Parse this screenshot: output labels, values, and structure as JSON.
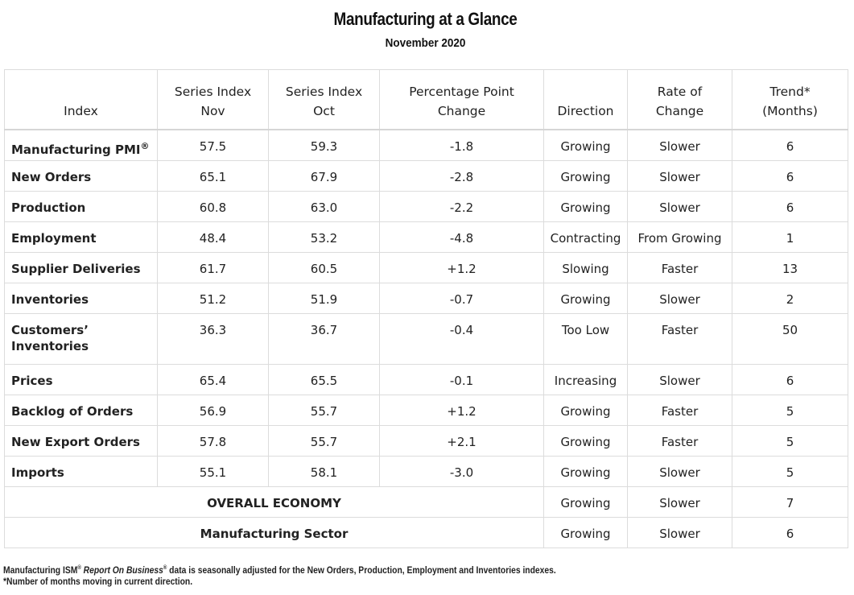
{
  "chart_data": {
    "type": "table",
    "title": "Manufacturing at a Glance",
    "subtitle": "November 2020",
    "columns": [
      {
        "line1": "",
        "line2": "Index"
      },
      {
        "line1": "Series Index",
        "line2": "Nov"
      },
      {
        "line1": "Series Index",
        "line2": "Oct"
      },
      {
        "line1": "Percentage Point",
        "line2": "Change"
      },
      {
        "line1": "",
        "line2": "Direction"
      },
      {
        "line1": "Rate of",
        "line2": "Change"
      },
      {
        "line1": "Trend*",
        "line2": "(Months)"
      }
    ],
    "rows": [
      {
        "index": "Manufacturing PMI",
        "mark": "®",
        "nov": "57.5",
        "oct": "59.3",
        "change": "-1.8",
        "direction": "Growing",
        "rate": "Slower",
        "trend": "6"
      },
      {
        "index": "New Orders",
        "mark": "",
        "nov": "65.1",
        "oct": "67.9",
        "change": "-2.8",
        "direction": "Growing",
        "rate": "Slower",
        "trend": "6"
      },
      {
        "index": "Production",
        "mark": "",
        "nov": "60.8",
        "oct": "63.0",
        "change": "-2.2",
        "direction": "Growing",
        "rate": "Slower",
        "trend": "6"
      },
      {
        "index": "Employment",
        "mark": "",
        "nov": "48.4",
        "oct": "53.2",
        "change": "-4.8",
        "direction": "Contracting",
        "rate": "From Growing",
        "trend": "1"
      },
      {
        "index": "Supplier Deliveries",
        "mark": "",
        "nov": "61.7",
        "oct": "60.5",
        "change": "+1.2",
        "direction": "Slowing",
        "rate": "Faster",
        "trend": "13"
      },
      {
        "index": "Inventories",
        "mark": "",
        "nov": "51.2",
        "oct": "51.9",
        "change": "-0.7",
        "direction": "Growing",
        "rate": "Slower",
        "trend": "2"
      },
      {
        "index_line1": "Customers’",
        "index_line2": "Inventories",
        "nov": "36.3",
        "oct": "36.7",
        "change": "-0.4",
        "direction": "Too Low",
        "rate": "Faster",
        "trend": "50"
      },
      {
        "index": "Prices",
        "mark": "",
        "nov": "65.4",
        "oct": "65.5",
        "change": "-0.1",
        "direction": "Increasing",
        "rate": "Slower",
        "trend": "6"
      },
      {
        "index": "Backlog of Orders",
        "mark": "",
        "nov": "56.9",
        "oct": "55.7",
        "change": "+1.2",
        "direction": "Growing",
        "rate": "Faster",
        "trend": "5"
      },
      {
        "index": "New Export Orders",
        "mark": "",
        "nov": "57.8",
        "oct": "55.7",
        "change": "+2.1",
        "direction": "Growing",
        "rate": "Faster",
        "trend": "5"
      },
      {
        "index": "Imports",
        "mark": "",
        "nov": "55.1",
        "oct": "58.1",
        "change": "-3.0",
        "direction": "Growing",
        "rate": "Slower",
        "trend": "5"
      }
    ],
    "summary_rows": [
      {
        "label": "OVERALL ECONOMY",
        "direction": "Growing",
        "rate": "Slower",
        "trend": "7"
      },
      {
        "label": "Manufacturing Sector",
        "direction": "Growing",
        "rate": "Slower",
        "trend": "6"
      }
    ]
  },
  "footnotes": {
    "line1_prefix": "Manufacturing ISM",
    "line1_mark1": "®",
    "line1_italic": "Report On Business",
    "line1_mark2": "®",
    "line1_suffix": " data is seasonally adjusted for the New Orders, Production, Employment and Inventories indexes.",
    "line2": "*Number of months moving in current direction."
  }
}
